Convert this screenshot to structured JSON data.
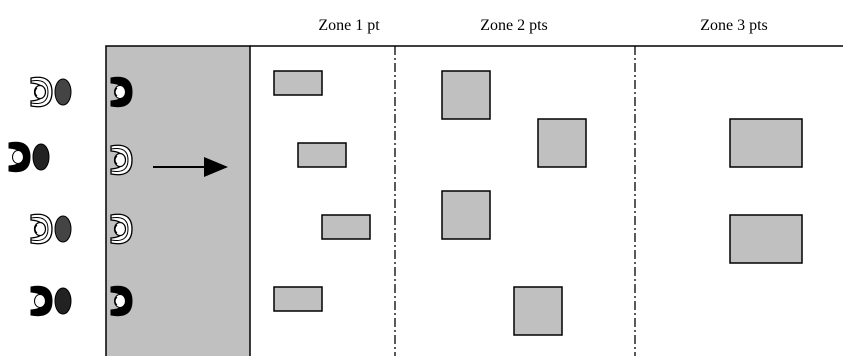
{
  "zones": [
    {
      "label": "Zone 1 pt"
    },
    {
      "label": "Zone 2 pts"
    },
    {
      "label": "Zone 3 pts"
    }
  ],
  "colors": {
    "start_area": "#c0c0c0",
    "target_box": "#c0c0c0",
    "outline": "#000000",
    "dark_figure": "#000000",
    "light_figure": "#ffffff"
  },
  "icons": {
    "player": "player-top-view-icon",
    "direction": "arrow-right-icon"
  }
}
